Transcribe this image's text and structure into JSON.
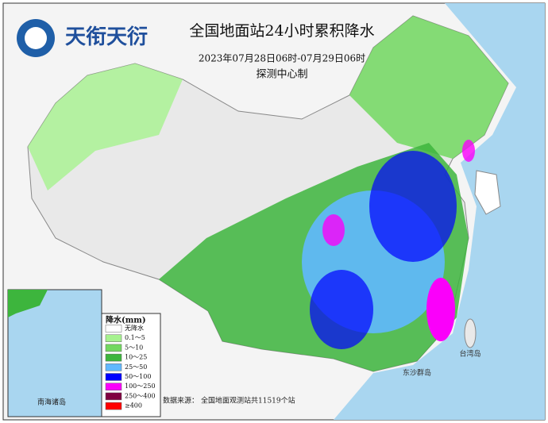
{
  "header": {
    "logo_text": "天衔天衍",
    "title": "全国地面站24小时累积降水",
    "subtitle": "2023年07月28日06时-07月29日06时",
    "producer": "探测中心制"
  },
  "legend": {
    "title": "降水(mm)",
    "items": [
      {
        "label": "无降水",
        "color": "#ffffff"
      },
      {
        "label": "0.1～5",
        "color": "#a6f28f"
      },
      {
        "label": "5～10",
        "color": "#72d860"
      },
      {
        "label": "10～25",
        "color": "#3db53d"
      },
      {
        "label": "25～50",
        "color": "#61b8ff"
      },
      {
        "label": "50～100",
        "color": "#0000ff"
      },
      {
        "label": "100～250",
        "color": "#fa00fa"
      },
      {
        "label": "250～400",
        "color": "#800040"
      },
      {
        "label": "≥400",
        "color": "#ff0000"
      }
    ]
  },
  "inset": {
    "label": "南海诸岛"
  },
  "footer": {
    "source": "数据来源：",
    "note": "全国地面观测站共11519个站"
  },
  "place_labels": [
    "台湾岛",
    "东沙群岛"
  ]
}
